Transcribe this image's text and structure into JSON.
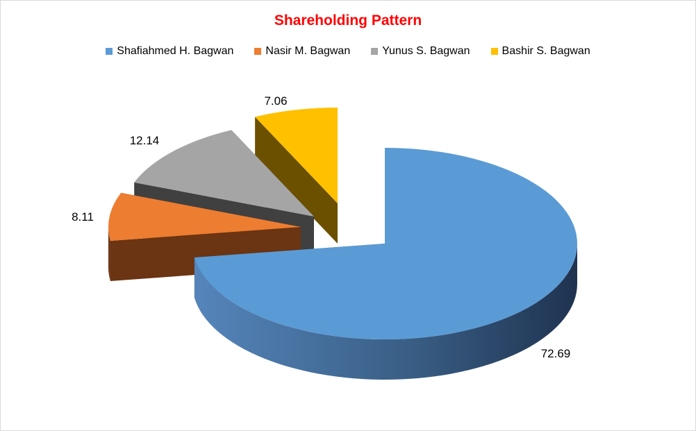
{
  "chart_data": {
    "type": "pie",
    "title": "Shareholding Pattern",
    "legend_position": "top",
    "slices": [
      {
        "label": "Shafiahmed H. Bagwan",
        "value": 72.69,
        "color": "#5b9bd5",
        "side_color": "#2f5580",
        "data_label": "72.69"
      },
      {
        "label": "Nasir M. Bagwan",
        "value": 8.11,
        "color": "#ed7d31",
        "side_color": "#6b3412",
        "data_label": "8.11"
      },
      {
        "label": "Yunus S. Bagwan",
        "value": 12.14,
        "color": "#a5a5a5",
        "side_color": "#404040",
        "data_label": "12.14"
      },
      {
        "label": "Bashir S. Bagwan",
        "value": 7.06,
        "color": "#ffc000",
        "side_color": "#6b5000",
        "data_label": "7.06"
      }
    ],
    "exploded": true,
    "three_d": true
  }
}
